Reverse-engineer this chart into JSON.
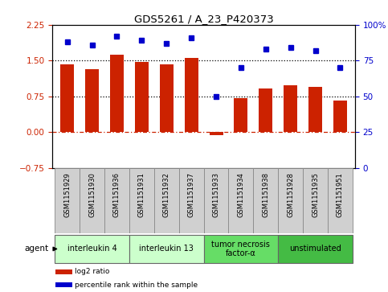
{
  "title": "GDS5261 / A_23_P420373",
  "samples": [
    "GSM1151929",
    "GSM1151930",
    "GSM1151936",
    "GSM1151931",
    "GSM1151932",
    "GSM1151937",
    "GSM1151933",
    "GSM1151934",
    "GSM1151938",
    "GSM1151928",
    "GSM1151935",
    "GSM1151951"
  ],
  "log2_ratio": [
    1.42,
    1.32,
    1.62,
    1.48,
    1.42,
    1.56,
    -0.07,
    0.72,
    0.92,
    0.98,
    0.95,
    0.67
  ],
  "percentile_rank": [
    88,
    86,
    92,
    89,
    87,
    91,
    50,
    70,
    83,
    84,
    82,
    70
  ],
  "ylim_left": [
    -0.75,
    2.25
  ],
  "ylim_right": [
    0,
    100
  ],
  "yticks_left": [
    -0.75,
    0,
    0.75,
    1.5,
    2.25
  ],
  "yticks_right": [
    0,
    25,
    50,
    75,
    100
  ],
  "hline_dotted": [
    0.75,
    1.5
  ],
  "hline_dashdot": 0,
  "bar_color": "#cc2200",
  "dot_color": "#0000cc",
  "agent_groups": [
    {
      "label": "interleukin 4",
      "start": 0,
      "end": 2,
      "color": "#ccffcc"
    },
    {
      "label": "interleukin 13",
      "start": 3,
      "end": 5,
      "color": "#ccffcc"
    },
    {
      "label": "tumor necrosis\nfactor-α",
      "start": 6,
      "end": 8,
      "color": "#66dd66"
    },
    {
      "label": "unstimulated",
      "start": 9,
      "end": 11,
      "color": "#44bb44"
    }
  ],
  "legend_items": [
    {
      "label": "log2 ratio",
      "color": "#cc2200"
    },
    {
      "label": "percentile rank within the sample",
      "color": "#0000cc"
    }
  ],
  "sample_bg": "#d0d0d0",
  "bar_width": 0.55
}
